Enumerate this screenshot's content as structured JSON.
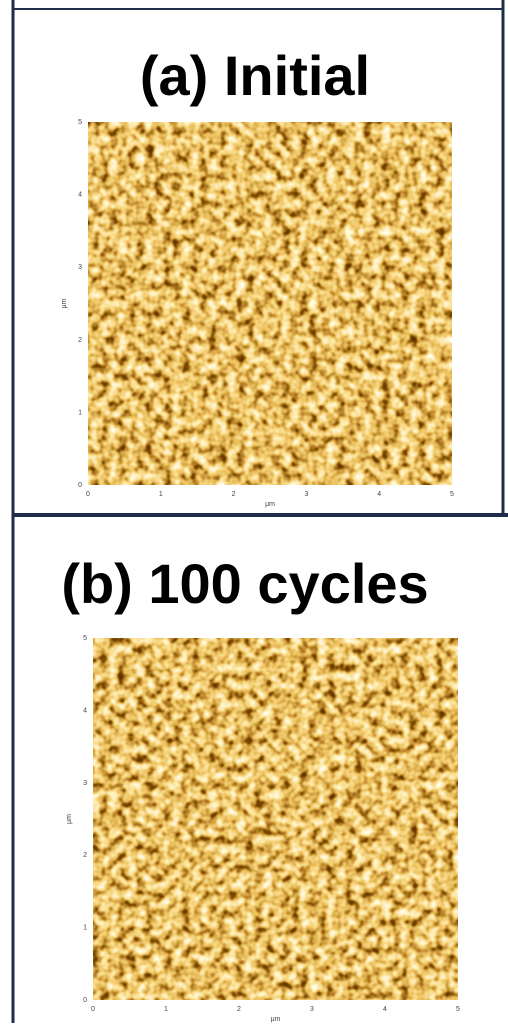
{
  "panels": [
    {
      "title": "(a) Initial",
      "x_label": "μm",
      "y_label": "μm",
      "x_ticks": [
        0,
        1,
        2,
        3,
        4,
        5
      ],
      "y_ticks": [
        0,
        1,
        2,
        3,
        4,
        5
      ]
    },
    {
      "title": "(b) 100 cycles",
      "x_label": "μm",
      "y_label": "μm",
      "x_ticks": [
        0,
        1,
        2,
        3,
        4,
        5
      ],
      "y_ticks": [
        0,
        1,
        2,
        3,
        4,
        5
      ]
    }
  ]
}
